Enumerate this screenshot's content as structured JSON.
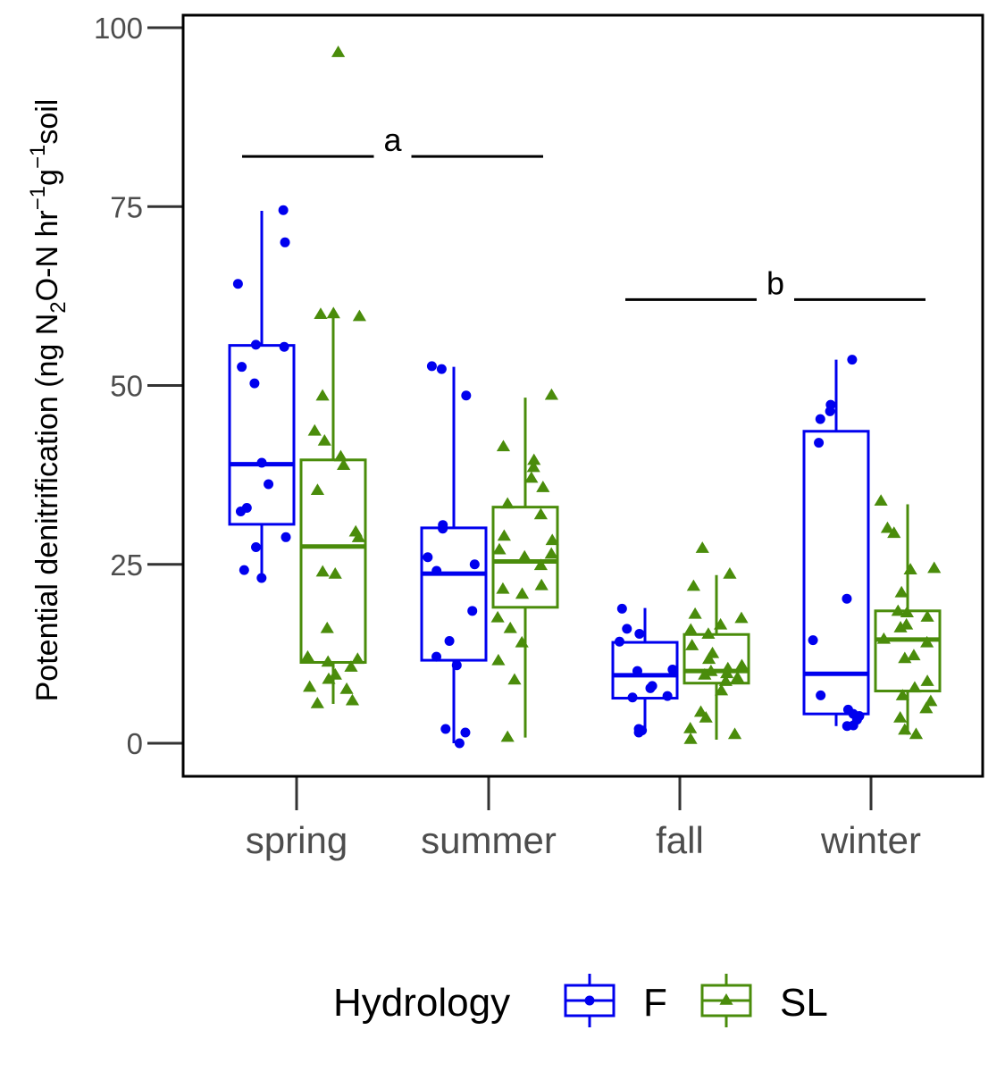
{
  "chart_data": {
    "type": "boxplot",
    "categories": [
      "spring",
      "summer",
      "fall",
      "winter"
    ],
    "ylabel": {
      "main": "Potential denitrification (ng N",
      "sub": "2",
      "mid": "O-N hr",
      "sup1": "−1",
      "mid2": "g",
      "sup2": "−1",
      "end": "soil"
    },
    "yticks": [
      0,
      25,
      50,
      75,
      100
    ],
    "ylim": [
      -4.5,
      104.5
    ],
    "grid": false,
    "legend": {
      "title": "Hydrology",
      "position": "bottom",
      "items": [
        {
          "key": "F",
          "label": "F"
        },
        {
          "key": "SL",
          "label": "SL"
        }
      ]
    },
    "series": [
      {
        "key": "F",
        "color": "#0000ee",
        "marker": "circle",
        "boxes": [
          {
            "category": "spring",
            "whisker_low": 23.2,
            "q1": 30.6,
            "median": 39.0,
            "q3": 55.6,
            "whisker_high": 74.4
          },
          {
            "category": "summer",
            "whisker_low": 0.0,
            "q1": 11.6,
            "median": 23.7,
            "q3": 30.1,
            "whisker_high": 52.6
          },
          {
            "category": "fall",
            "whisker_low": 1.5,
            "q1": 6.3,
            "median": 9.5,
            "q3": 14.1,
            "whisker_high": 18.9
          },
          {
            "category": "winter",
            "whisker_low": 2.4,
            "q1": 4.1,
            "median": 9.7,
            "q3": 43.6,
            "whisker_high": 53.6
          }
        ],
        "points": [
          {
            "category": "spring",
            "values": [
              74.5,
              70.0,
              64.2,
              55.7,
              55.4,
              52.6,
              50.3,
              39.2,
              36.2,
              32.9,
              32.4,
              28.8,
              27.4,
              24.2,
              23.1
            ]
          },
          {
            "category": "summer",
            "values": [
              52.3,
              52.7,
              48.6,
              30.5,
              30.0,
              26.0,
              25.0,
              24.1,
              18.5,
              14.3,
              12.1,
              10.9,
              2.0,
              1.5,
              0.0
            ]
          },
          {
            "category": "fall",
            "values": [
              18.8,
              16.0,
              15.3,
              14.2,
              10.3,
              10.1,
              8.0,
              7.7,
              6.6,
              6.4,
              2.0,
              1.8,
              1.5
            ]
          },
          {
            "category": "winter",
            "values": [
              53.6,
              47.3,
              46.4,
              45.3,
              42.0,
              20.2,
              14.4,
              6.7,
              4.7,
              4.1,
              3.8,
              3.3,
              2.5,
              2.4
            ]
          }
        ]
      },
      {
        "key": "SL",
        "color": "#4a8c0b",
        "marker": "triangle",
        "boxes": [
          {
            "category": "spring",
            "whisker_low": 5.5,
            "q1": 11.3,
            "median": 27.5,
            "q3": 39.6,
            "whisker_high": 59.6
          },
          {
            "category": "summer",
            "whisker_low": 0.8,
            "q1": 19.0,
            "median": 25.4,
            "q3": 33.0,
            "whisker_high": 48.3
          },
          {
            "category": "fall",
            "whisker_low": 0.5,
            "q1": 8.4,
            "median": 10.1,
            "q3": 15.2,
            "whisker_high": 23.5
          },
          {
            "category": "winter",
            "whisker_low": 1.2,
            "q1": 7.3,
            "median": 14.5,
            "q3": 18.5,
            "whisker_high": 33.4
          }
        ],
        "points": [
          {
            "category": "spring",
            "values": [
              96.5,
              60.0,
              59.6,
              59.9,
              48.5,
              43.6,
              42.2,
              40.0,
              38.8,
              35.3,
              29.5,
              28.7,
              23.9,
              23.6,
              16.0,
              12.0,
              11.7,
              11.3,
              10.6,
              9.5,
              8.9,
              7.8,
              7.5,
              5.9,
              5.5
            ]
          },
          {
            "category": "summer",
            "values": [
              48.6,
              41.4,
              39.5,
              38.5,
              37.0,
              35.7,
              33.4,
              31.9,
              28.9,
              28.3,
              27.0,
              26.4,
              26.0,
              24.8,
              22.0,
              21.5,
              20.8,
              17.5,
              16.0,
              14.0,
              11.5,
              8.8,
              0.8
            ]
          },
          {
            "category": "fall",
            "values": [
              27.2,
              23.6,
              21.9,
              18.0,
              17.4,
              16.5,
              15.8,
              15.2,
              13.6,
              12.5,
              11.7,
              10.8,
              10.4,
              10.0,
              9.7,
              9.5,
              9.1,
              8.6,
              7.3,
              4.3,
              3.5,
              2.0,
              1.2,
              0.5
            ]
          },
          {
            "category": "winter",
            "values": [
              33.8,
              30.0,
              29.3,
              24.4,
              24.2,
              21.0,
              18.4,
              18.2,
              17.6,
              16.5,
              16.1,
              14.5,
              14.0,
              12.2,
              11.8,
              8.6,
              7.7,
              6.6,
              5.8,
              4.8,
              3.5,
              1.8,
              1.2
            ]
          }
        ]
      }
    ],
    "annotations": [
      {
        "label": "a",
        "y": 82,
        "from": "spring",
        "to": "summer"
      },
      {
        "label": "b",
        "y": 62,
        "from": "fall",
        "to": "winter"
      }
    ]
  }
}
